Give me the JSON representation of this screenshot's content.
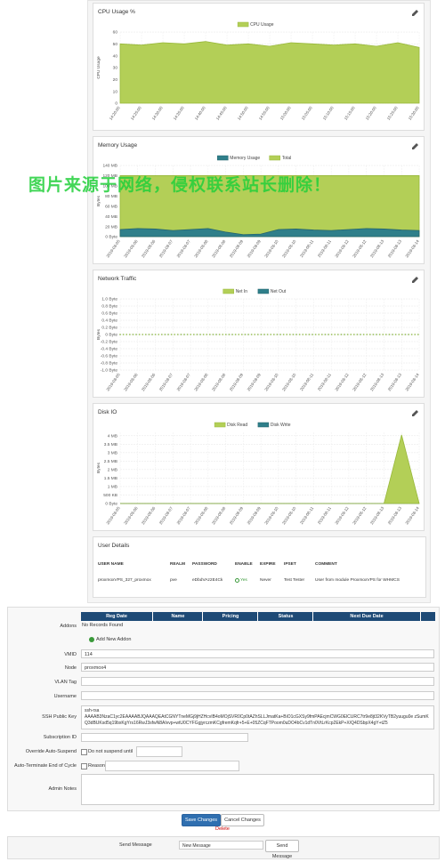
{
  "watermark": "图片来源于网络，侵权联系站长删除！",
  "chart_data": [
    {
      "type": "area",
      "title": "CPU Usage %",
      "ylabel": "CPU Usage",
      "grid": true,
      "categories": [
        "14:20:00",
        "14:25:00",
        "14:30:00",
        "14:35:00",
        "14:40:00",
        "14:45:00",
        "14:50:00",
        "14:55:00",
        "15:00:00",
        "15:05:00",
        "15:10:00",
        "15:15:00",
        "15:20:00",
        "15:25:00",
        "15:30:00"
      ],
      "series": [
        {
          "name": "CPU Usage",
          "color": "#b3cf57",
          "values": [
            50,
            49,
            51,
            50,
            52,
            49,
            50,
            48,
            51,
            50,
            49,
            50,
            48,
            51,
            47
          ]
        }
      ],
      "ylim": [
        0,
        60
      ],
      "yticks": [
        0,
        10,
        20,
        30,
        40,
        50,
        60
      ]
    },
    {
      "type": "area",
      "title": "Memory Usage",
      "ylabel": "Bytes",
      "grid": true,
      "categories": [
        "2019-08-05",
        "2019-08-06",
        "2019-08-06",
        "2019-08-07",
        "2019-08-07",
        "2019-08-08",
        "2019-08-08",
        "2019-08-09",
        "2019-08-09",
        "2019-08-10",
        "2019-08-10",
        "2019-08-11",
        "2019-08-11",
        "2019-08-12",
        "2019-08-12",
        "2019-08-13",
        "2019-08-13",
        "2019-08-14"
      ],
      "series": [
        {
          "name": "Memory Usage",
          "color": "#2f7f8a",
          "values": [
            14,
            16,
            15,
            12,
            14,
            16,
            9,
            4,
            5,
            14,
            15,
            13,
            12,
            14,
            16,
            15,
            13,
            12
          ]
        },
        {
          "name": "Total",
          "color": "#b3cf57",
          "values": [
            120,
            120,
            120,
            120,
            120,
            120,
            120,
            120,
            120,
            120,
            120,
            120,
            120,
            120,
            120,
            120,
            120,
            120
          ]
        }
      ],
      "ylim": [
        0,
        140
      ],
      "yticks": [
        {
          "value": 0,
          "label": "0 Byte"
        },
        {
          "value": 20,
          "label": "20 MB"
        },
        {
          "value": 40,
          "label": "40 MB"
        },
        {
          "value": 60,
          "label": "60 MB"
        },
        {
          "value": 80,
          "label": "80 MB"
        },
        {
          "value": 100,
          "label": "100 MB"
        },
        {
          "value": 120,
          "label": "120 MB"
        },
        {
          "value": 140,
          "label": "140 MB"
        }
      ]
    },
    {
      "type": "line",
      "title": "Network Traffic",
      "ylabel": "Bytes",
      "grid": true,
      "categories": [
        "2019-08-05",
        "2019-08-06",
        "2019-08-06",
        "2019-08-07",
        "2019-08-07",
        "2019-08-08",
        "2019-08-08",
        "2019-08-09",
        "2019-08-09",
        "2019-08-10",
        "2019-08-10",
        "2019-08-11",
        "2019-08-11",
        "2019-08-12",
        "2019-08-12",
        "2019-08-13",
        "2019-08-13",
        "2019-08-14"
      ],
      "series": [
        {
          "name": "Net In",
          "color": "#b3cf57",
          "values": [
            0,
            0,
            0,
            0,
            0,
            0,
            0,
            0,
            0,
            0,
            0,
            0,
            0,
            0,
            0,
            0,
            0,
            0
          ]
        },
        {
          "name": "Net Out",
          "color": "#2f7f8a",
          "values": [
            0,
            0,
            0,
            0,
            0,
            0,
            0,
            0,
            0,
            0,
            0,
            0,
            0,
            0,
            0,
            0,
            0,
            0
          ]
        }
      ],
      "ylim": [
        -1,
        1
      ],
      "yticks": [
        {
          "value": -1,
          "label": "-1.0 Byte"
        },
        {
          "value": -0.8,
          "label": "-0.8 Byte"
        },
        {
          "value": -0.6,
          "label": "-0.6 Byte"
        },
        {
          "value": -0.4,
          "label": "-0.4 Byte"
        },
        {
          "value": -0.2,
          "label": "-0.2 Byte"
        },
        {
          "value": 0,
          "label": "0 Byte"
        },
        {
          "value": 0.2,
          "label": "0.2 Byte"
        },
        {
          "value": 0.4,
          "label": "0.4 Byte"
        },
        {
          "value": 0.6,
          "label": "0.6 Byte"
        },
        {
          "value": 0.8,
          "label": "0.8 Byte"
        },
        {
          "value": 1,
          "label": "1.0 Byte"
        }
      ]
    },
    {
      "type": "area",
      "title": "Disk IO",
      "ylabel": "Bytes",
      "grid": true,
      "categories": [
        "2019-08-05",
        "2019-08-06",
        "2019-08-06",
        "2019-08-07",
        "2019-08-07",
        "2019-08-08",
        "2019-08-08",
        "2019-08-09",
        "2019-08-09",
        "2019-08-10",
        "2019-08-10",
        "2019-08-11",
        "2019-08-11",
        "2019-08-12",
        "2019-08-12",
        "2019-08-13",
        "2019-08-13",
        "2019-08-14"
      ],
      "series": [
        {
          "name": "Disk Read",
          "color": "#b3cf57",
          "values": [
            0,
            0,
            0,
            0,
            0,
            0,
            0,
            0,
            0,
            0,
            0,
            0,
            0,
            0,
            0,
            0,
            4.05,
            0
          ]
        },
        {
          "name": "Disk Write",
          "color": "#2f7f8a",
          "values": [
            0,
            0,
            0,
            0,
            0,
            0,
            0,
            0,
            0,
            0,
            0,
            0,
            0,
            0,
            0,
            0,
            0,
            0
          ]
        }
      ],
      "ylim": [
        0,
        4.2
      ],
      "yticks": [
        {
          "value": 0,
          "label": "0 Byte"
        },
        {
          "value": 0.5,
          "label": "500 KB"
        },
        {
          "value": 1,
          "label": "1 MB"
        },
        {
          "value": 1.5,
          "label": "1.5 MB"
        },
        {
          "value": 2,
          "label": "2 MB"
        },
        {
          "value": 2.5,
          "label": "2.5 MB"
        },
        {
          "value": 3,
          "label": "3 MB"
        },
        {
          "value": 3.5,
          "label": "3.5 MB"
        },
        {
          "value": 4,
          "label": "4 MB"
        }
      ]
    }
  ],
  "user_details": {
    "title": "User Details",
    "columns": [
      "USER NAME",
      "REALM",
      "PASSWORD",
      "ENABLE",
      "EXPIRE",
      "IPSET",
      "COMMENT"
    ],
    "rows": [
      [
        "proxmoxVPS_327_proxmox",
        "pve",
        "eDbdVAz2E4Ck",
        "Yes",
        "Never",
        "Test Tester",
        "User from module ProxmoxVPS for WHMCS"
      ]
    ]
  },
  "addons": {
    "label": "Addons",
    "columns": [
      "Reg Date",
      "Name",
      "Pricing",
      "Status",
      "Next Due Date"
    ],
    "empty": "No Records Found",
    "add": "Add New Addon"
  },
  "form": {
    "fields": [
      {
        "label": "VMID",
        "value": "114"
      },
      {
        "label": "Node",
        "value": "proxmox4"
      },
      {
        "label": "VLAN Tag"
      },
      {
        "label": "Username"
      },
      {
        "label": "SSH Public Key",
        "value": "ssh-rsa\nAAAAB3NzaC1yc2EAAAABJQAAAQEAtCGNYTneMGj9jHZHcvIB4oMOjSVR0Cp0tAZhSLLJmatKa+BiO1cGXSy9fmPAEcjmCWG0ElCURC7tr9e8jt32KVyTB2yuugu0e zSumKQ3dBUKsd5q19bxKgYrs16RwJ3sfwN8AIvvp+wtU0CYFGgjyrczmKCgfremKqfr+5+E+05ZCqFTPoom0uDO4bCv1dTn0VtLrKcp2EkP+X/Q4DSbpX4gY+tZ5"
      },
      {
        "label": "Subscription ID"
      },
      {
        "label": "Override Auto-Suspend",
        "option": "Do not suspend until"
      },
      {
        "label": "Auto-Terminate End of Cycle",
        "option": "Reason"
      },
      {
        "label": "Admin Notes"
      }
    ]
  },
  "buttons": {
    "save": "Save Changes",
    "cancel": "Cancel Changes",
    "delete": "Delete"
  },
  "send_message": {
    "label": "Send Message",
    "select": "New Message",
    "button": "Send Message"
  }
}
